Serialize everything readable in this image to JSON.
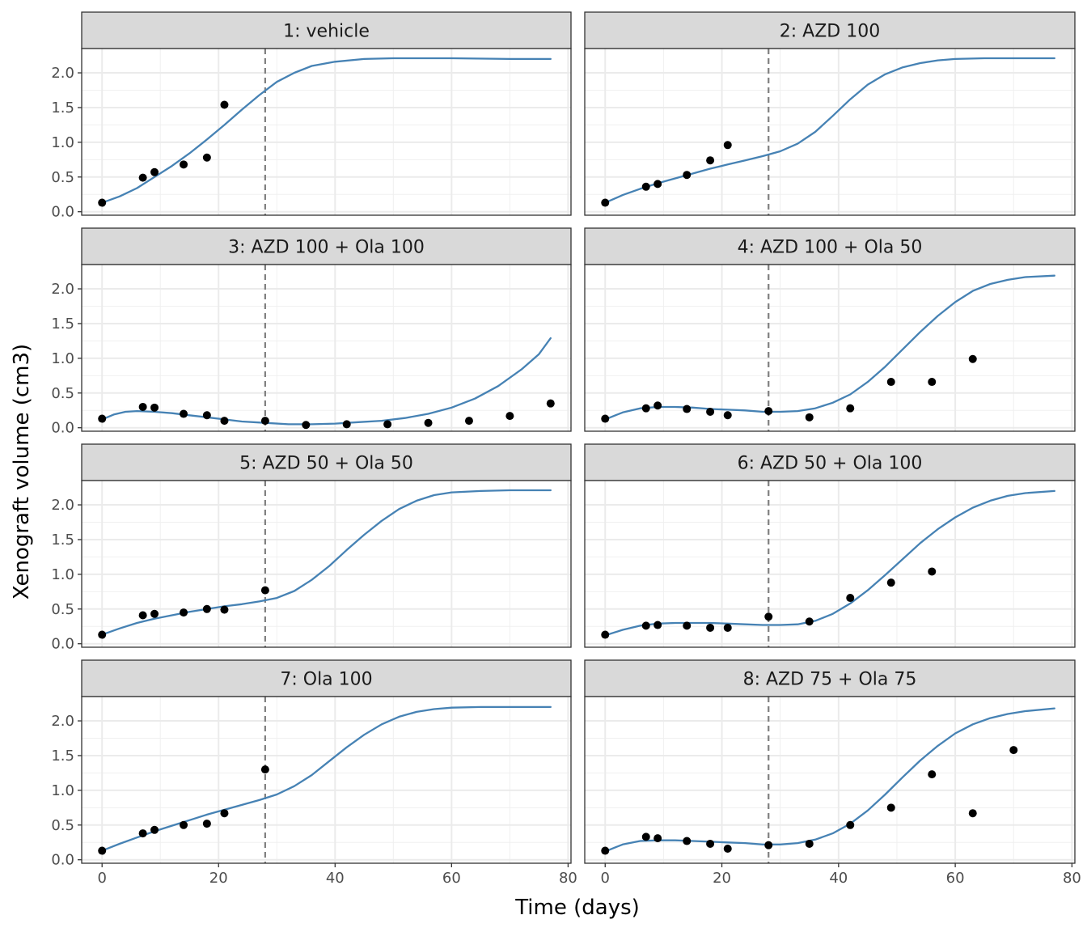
{
  "chart_data": {
    "type": "scatter",
    "layout": "facet-grid-2-columns",
    "xlabel": "Time (days)",
    "ylabel": "Xenograft volume (cm3)",
    "xlim": [
      -3.5,
      80.5
    ],
    "ylim": [
      -0.05,
      2.35
    ],
    "x_ticks": [
      0,
      20,
      40,
      60,
      80
    ],
    "y_ticks": [
      0.0,
      0.5,
      1.0,
      1.5,
      2.0
    ],
    "y_tick_labels": [
      "0.0",
      "0.5",
      "1.0",
      "1.5",
      "2.0"
    ],
    "grid": true,
    "reference_line_x": 28,
    "colors": {
      "curve": "#4682b4",
      "points": "#000000",
      "reference_line": "#7f7f7f",
      "strip_fill": "#d9d9d9"
    },
    "panels": [
      {
        "title": "1: vehicle",
        "points": [
          [
            0,
            0.13
          ],
          [
            7,
            0.49
          ],
          [
            9,
            0.57
          ],
          [
            14,
            0.68
          ],
          [
            18,
            0.78
          ],
          [
            21,
            1.54
          ]
        ],
        "curve": [
          [
            0,
            0.13
          ],
          [
            3,
            0.22
          ],
          [
            6,
            0.34
          ],
          [
            9,
            0.5
          ],
          [
            12,
            0.66
          ],
          [
            15,
            0.84
          ],
          [
            18,
            1.04
          ],
          [
            21,
            1.25
          ],
          [
            24,
            1.47
          ],
          [
            27,
            1.68
          ],
          [
            30,
            1.87
          ],
          [
            33,
            2.0
          ],
          [
            36,
            2.1
          ],
          [
            40,
            2.16
          ],
          [
            45,
            2.2
          ],
          [
            50,
            2.21
          ],
          [
            60,
            2.21
          ],
          [
            70,
            2.2
          ],
          [
            77,
            2.2
          ]
        ]
      },
      {
        "title": "2: AZD 100",
        "points": [
          [
            0,
            0.13
          ],
          [
            7,
            0.36
          ],
          [
            9,
            0.4
          ],
          [
            14,
            0.53
          ],
          [
            18,
            0.74
          ],
          [
            21,
            0.96
          ]
        ],
        "curve": [
          [
            0,
            0.13
          ],
          [
            3,
            0.24
          ],
          [
            6,
            0.33
          ],
          [
            9,
            0.41
          ],
          [
            12,
            0.48
          ],
          [
            15,
            0.55
          ],
          [
            18,
            0.62
          ],
          [
            21,
            0.68
          ],
          [
            24,
            0.74
          ],
          [
            27,
            0.8
          ],
          [
            30,
            0.87
          ],
          [
            33,
            0.98
          ],
          [
            36,
            1.15
          ],
          [
            39,
            1.38
          ],
          [
            42,
            1.62
          ],
          [
            45,
            1.83
          ],
          [
            48,
            1.98
          ],
          [
            51,
            2.08
          ],
          [
            54,
            2.14
          ],
          [
            57,
            2.18
          ],
          [
            60,
            2.2
          ],
          [
            65,
            2.21
          ],
          [
            70,
            2.21
          ],
          [
            77,
            2.21
          ]
        ]
      },
      {
        "title": "3: AZD 100 + Ola 100",
        "points": [
          [
            0,
            0.13
          ],
          [
            7,
            0.3
          ],
          [
            9,
            0.29
          ],
          [
            14,
            0.2
          ],
          [
            18,
            0.18
          ],
          [
            21,
            0.1
          ],
          [
            28,
            0.1
          ],
          [
            35,
            0.04
          ],
          [
            42,
            0.05
          ],
          [
            49,
            0.05
          ],
          [
            56,
            0.07
          ],
          [
            63,
            0.1
          ],
          [
            70,
            0.17
          ],
          [
            77,
            0.35
          ]
        ],
        "curve": [
          [
            0,
            0.12
          ],
          [
            2,
            0.19
          ],
          [
            4,
            0.23
          ],
          [
            6,
            0.24
          ],
          [
            9,
            0.23
          ],
          [
            12,
            0.21
          ],
          [
            15,
            0.18
          ],
          [
            18,
            0.15
          ],
          [
            21,
            0.12
          ],
          [
            24,
            0.09
          ],
          [
            28,
            0.07
          ],
          [
            32,
            0.05
          ],
          [
            36,
            0.05
          ],
          [
            40,
            0.06
          ],
          [
            44,
            0.08
          ],
          [
            48,
            0.1
          ],
          [
            52,
            0.14
          ],
          [
            56,
            0.2
          ],
          [
            60,
            0.29
          ],
          [
            64,
            0.42
          ],
          [
            68,
            0.6
          ],
          [
            72,
            0.84
          ],
          [
            75,
            1.06
          ],
          [
            77,
            1.29
          ]
        ]
      },
      {
        "title": "4: AZD 100 + Ola 50",
        "points": [
          [
            0,
            0.13
          ],
          [
            7,
            0.28
          ],
          [
            9,
            0.32
          ],
          [
            14,
            0.27
          ],
          [
            18,
            0.23
          ],
          [
            21,
            0.18
          ],
          [
            28,
            0.24
          ],
          [
            35,
            0.15
          ],
          [
            42,
            0.28
          ],
          [
            49,
            0.66
          ],
          [
            56,
            0.66
          ],
          [
            63,
            0.99
          ]
        ],
        "curve": [
          [
            0,
            0.12
          ],
          [
            3,
            0.22
          ],
          [
            6,
            0.28
          ],
          [
            9,
            0.3
          ],
          [
            12,
            0.3
          ],
          [
            15,
            0.29
          ],
          [
            18,
            0.27
          ],
          [
            21,
            0.26
          ],
          [
            24,
            0.25
          ],
          [
            27,
            0.23
          ],
          [
            30,
            0.23
          ],
          [
            33,
            0.24
          ],
          [
            36,
            0.28
          ],
          [
            39,
            0.36
          ],
          [
            42,
            0.48
          ],
          [
            45,
            0.66
          ],
          [
            48,
            0.88
          ],
          [
            51,
            1.13
          ],
          [
            54,
            1.38
          ],
          [
            57,
            1.61
          ],
          [
            60,
            1.81
          ],
          [
            63,
            1.97
          ],
          [
            66,
            2.07
          ],
          [
            69,
            2.13
          ],
          [
            72,
            2.17
          ],
          [
            77,
            2.19
          ]
        ]
      },
      {
        "title": "5: AZD 50 + Ola 50",
        "points": [
          [
            0,
            0.13
          ],
          [
            7,
            0.41
          ],
          [
            9,
            0.43
          ],
          [
            14,
            0.45
          ],
          [
            18,
            0.5
          ],
          [
            21,
            0.49
          ],
          [
            28,
            0.77
          ]
        ],
        "curve": [
          [
            0,
            0.13
          ],
          [
            3,
            0.22
          ],
          [
            6,
            0.3
          ],
          [
            9,
            0.36
          ],
          [
            12,
            0.41
          ],
          [
            15,
            0.46
          ],
          [
            18,
            0.5
          ],
          [
            21,
            0.54
          ],
          [
            24,
            0.57
          ],
          [
            27,
            0.61
          ],
          [
            30,
            0.66
          ],
          [
            33,
            0.76
          ],
          [
            36,
            0.92
          ],
          [
            39,
            1.12
          ],
          [
            42,
            1.35
          ],
          [
            45,
            1.57
          ],
          [
            48,
            1.77
          ],
          [
            51,
            1.94
          ],
          [
            54,
            2.06
          ],
          [
            57,
            2.14
          ],
          [
            60,
            2.18
          ],
          [
            65,
            2.2
          ],
          [
            70,
            2.21
          ],
          [
            77,
            2.21
          ]
        ]
      },
      {
        "title": "6: AZD 50 + Ola 100",
        "points": [
          [
            0,
            0.13
          ],
          [
            7,
            0.26
          ],
          [
            9,
            0.27
          ],
          [
            14,
            0.26
          ],
          [
            18,
            0.23
          ],
          [
            21,
            0.23
          ],
          [
            28,
            0.39
          ],
          [
            35,
            0.32
          ],
          [
            42,
            0.66
          ],
          [
            49,
            0.88
          ],
          [
            56,
            1.04
          ]
        ],
        "curve": [
          [
            0,
            0.12
          ],
          [
            3,
            0.2
          ],
          [
            6,
            0.26
          ],
          [
            9,
            0.29
          ],
          [
            12,
            0.3
          ],
          [
            15,
            0.3
          ],
          [
            18,
            0.3
          ],
          [
            21,
            0.29
          ],
          [
            24,
            0.28
          ],
          [
            27,
            0.27
          ],
          [
            30,
            0.27
          ],
          [
            33,
            0.28
          ],
          [
            36,
            0.33
          ],
          [
            39,
            0.43
          ],
          [
            42,
            0.58
          ],
          [
            45,
            0.77
          ],
          [
            48,
            0.99
          ],
          [
            51,
            1.22
          ],
          [
            54,
            1.45
          ],
          [
            57,
            1.65
          ],
          [
            60,
            1.82
          ],
          [
            63,
            1.96
          ],
          [
            66,
            2.06
          ],
          [
            69,
            2.13
          ],
          [
            72,
            2.17
          ],
          [
            77,
            2.2
          ]
        ]
      },
      {
        "title": "7: Ola 100",
        "points": [
          [
            0,
            0.13
          ],
          [
            7,
            0.38
          ],
          [
            9,
            0.43
          ],
          [
            14,
            0.5
          ],
          [
            18,
            0.52
          ],
          [
            21,
            0.67
          ],
          [
            28,
            1.3
          ]
        ],
        "curve": [
          [
            0,
            0.13
          ],
          [
            3,
            0.23
          ],
          [
            6,
            0.32
          ],
          [
            9,
            0.41
          ],
          [
            12,
            0.49
          ],
          [
            15,
            0.57
          ],
          [
            18,
            0.65
          ],
          [
            21,
            0.72
          ],
          [
            24,
            0.79
          ],
          [
            27,
            0.86
          ],
          [
            30,
            0.94
          ],
          [
            33,
            1.06
          ],
          [
            36,
            1.22
          ],
          [
            39,
            1.42
          ],
          [
            42,
            1.62
          ],
          [
            45,
            1.8
          ],
          [
            48,
            1.95
          ],
          [
            51,
            2.06
          ],
          [
            54,
            2.13
          ],
          [
            57,
            2.17
          ],
          [
            60,
            2.19
          ],
          [
            65,
            2.2
          ],
          [
            70,
            2.2
          ],
          [
            77,
            2.2
          ]
        ]
      },
      {
        "title": "8: AZD 75 + Ola 75",
        "points": [
          [
            0,
            0.13
          ],
          [
            7,
            0.33
          ],
          [
            9,
            0.31
          ],
          [
            14,
            0.27
          ],
          [
            18,
            0.23
          ],
          [
            21,
            0.16
          ],
          [
            28,
            0.21
          ],
          [
            35,
            0.23
          ],
          [
            42,
            0.5
          ],
          [
            49,
            0.75
          ],
          [
            56,
            1.23
          ],
          [
            63,
            0.67
          ],
          [
            70,
            1.58
          ]
        ],
        "curve": [
          [
            0,
            0.12
          ],
          [
            3,
            0.22
          ],
          [
            6,
            0.27
          ],
          [
            9,
            0.28
          ],
          [
            12,
            0.28
          ],
          [
            15,
            0.27
          ],
          [
            18,
            0.26
          ],
          [
            21,
            0.25
          ],
          [
            24,
            0.24
          ],
          [
            27,
            0.22
          ],
          [
            30,
            0.22
          ],
          [
            33,
            0.24
          ],
          [
            36,
            0.29
          ],
          [
            39,
            0.38
          ],
          [
            42,
            0.52
          ],
          [
            45,
            0.71
          ],
          [
            48,
            0.94
          ],
          [
            51,
            1.19
          ],
          [
            54,
            1.43
          ],
          [
            57,
            1.64
          ],
          [
            60,
            1.82
          ],
          [
            63,
            1.95
          ],
          [
            66,
            2.04
          ],
          [
            69,
            2.1
          ],
          [
            72,
            2.14
          ],
          [
            77,
            2.18
          ]
        ]
      }
    ]
  }
}
